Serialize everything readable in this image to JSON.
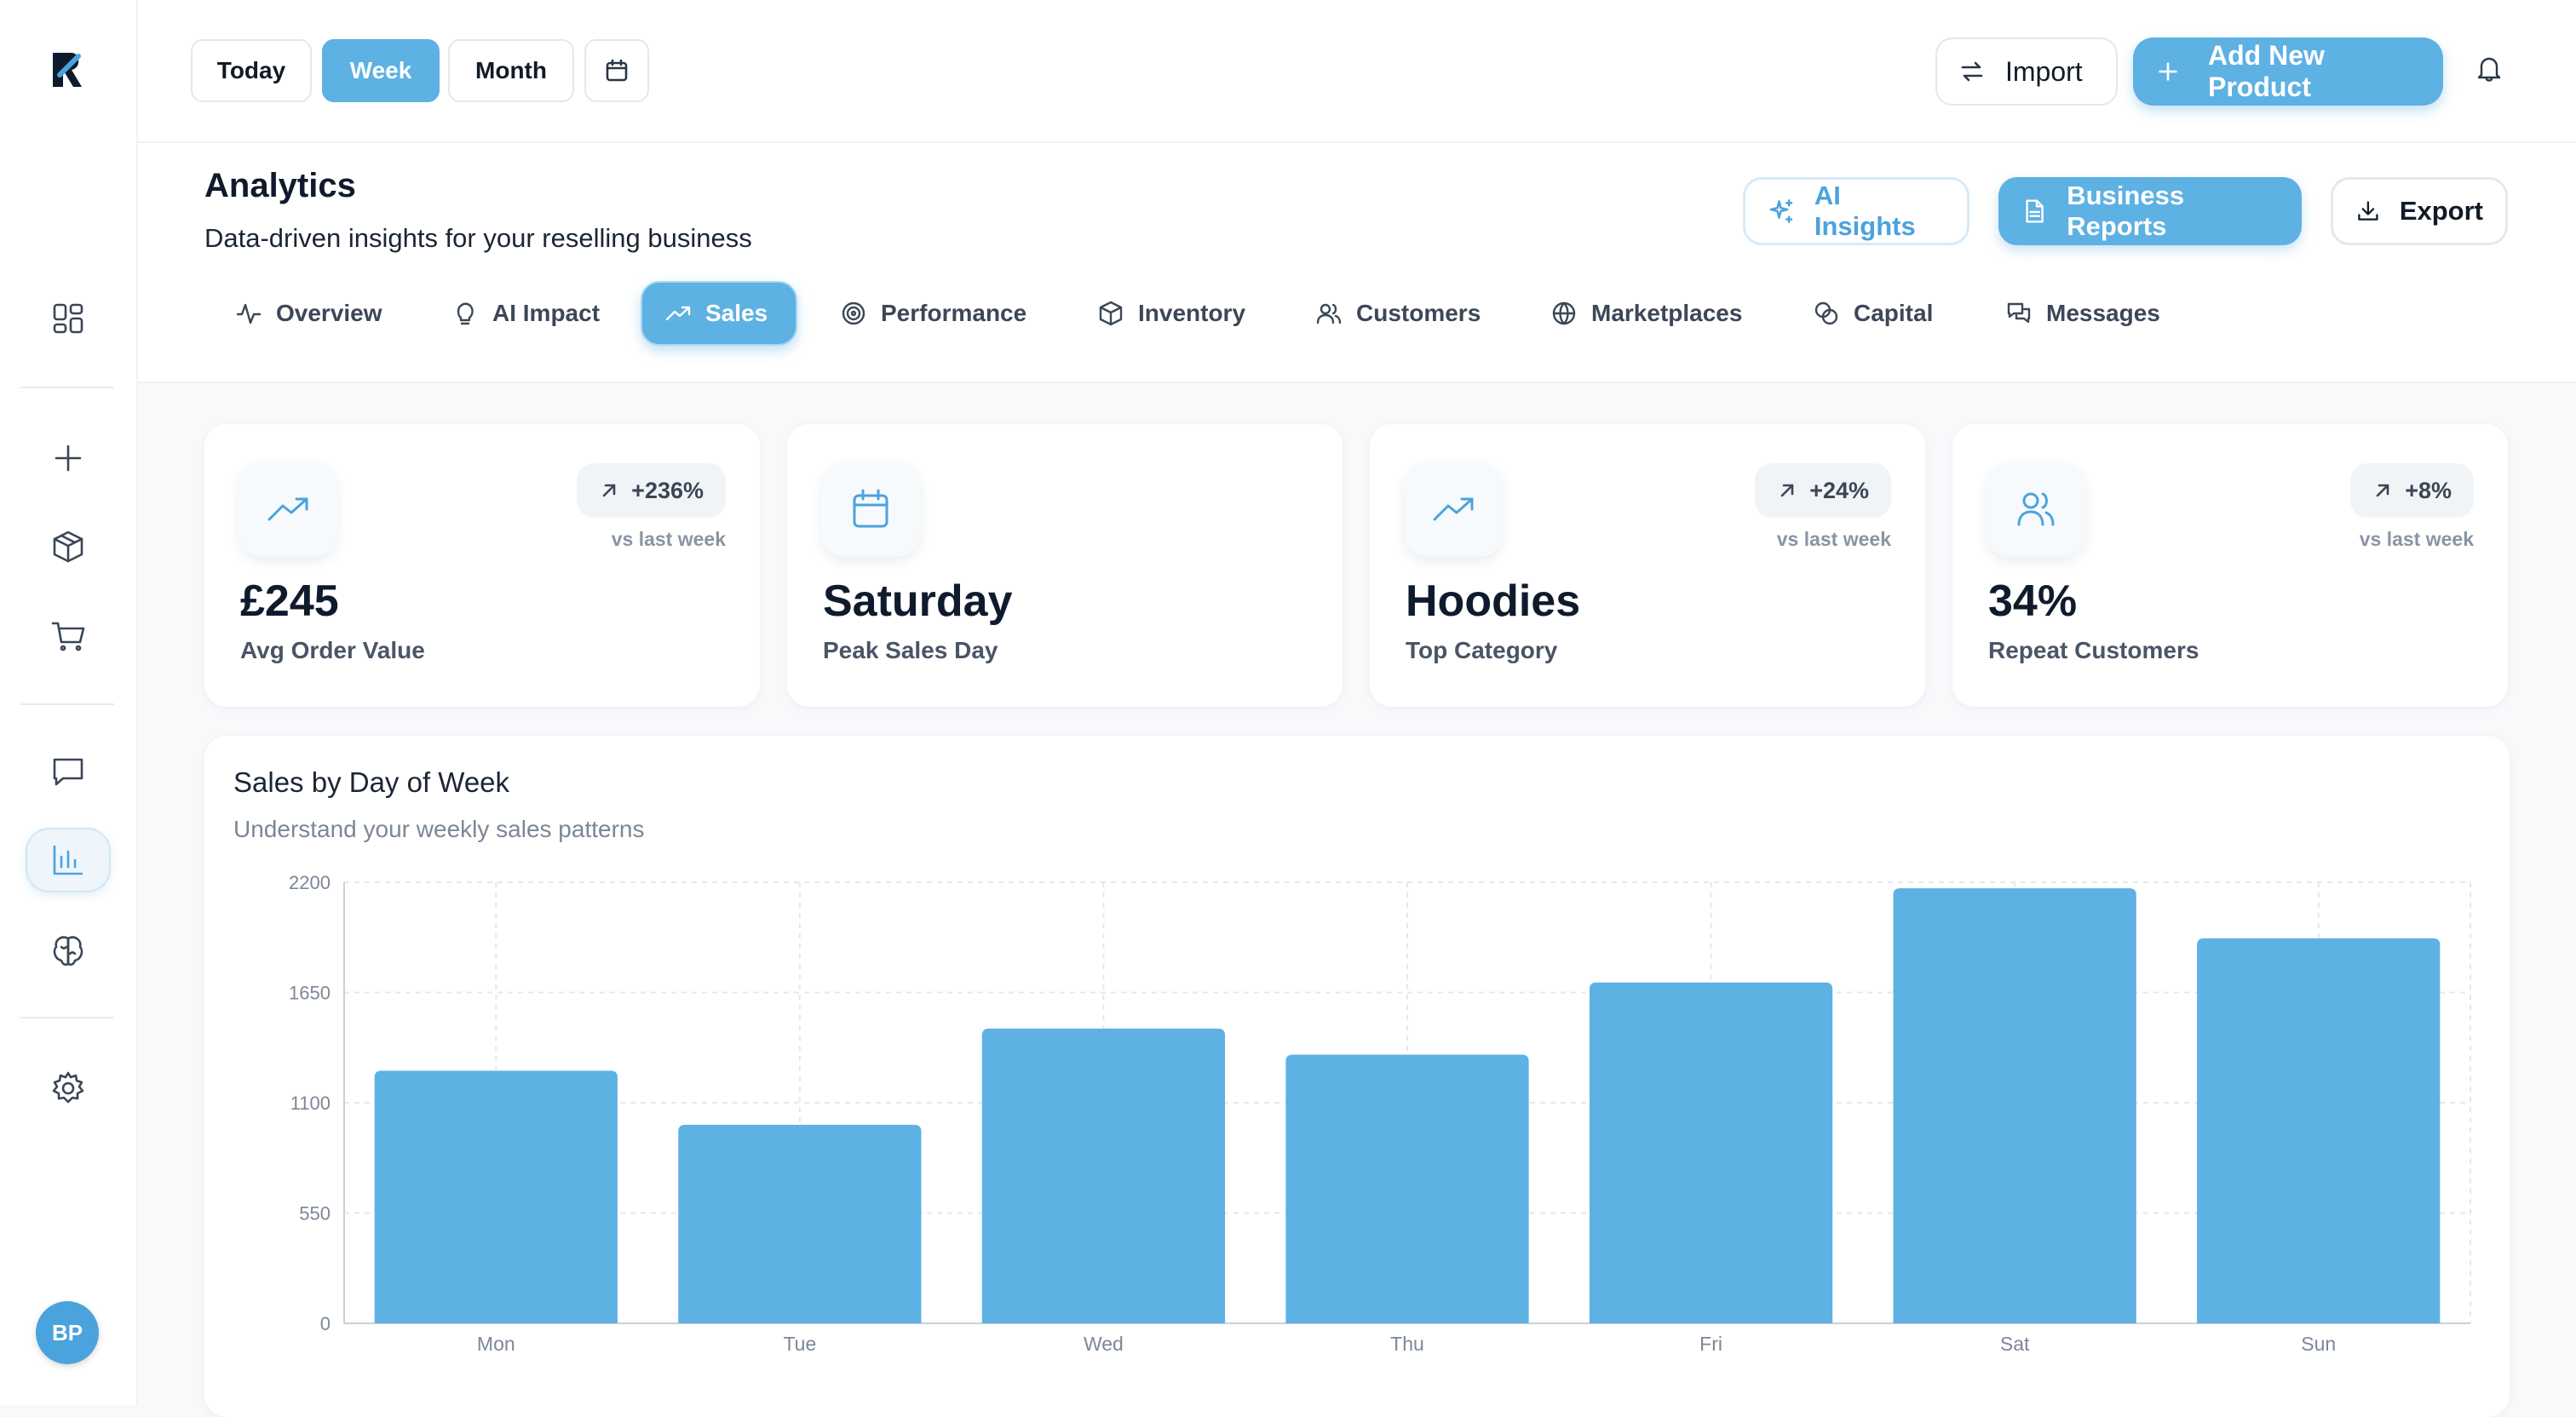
{
  "app": {
    "logo_name": "R logo"
  },
  "sidebar": {
    "items": [
      {
        "name": "dashboard"
      },
      {
        "name": "add"
      },
      {
        "name": "products"
      },
      {
        "name": "cart"
      },
      {
        "name": "messages"
      },
      {
        "name": "analytics",
        "active": true
      },
      {
        "name": "ai-brain"
      },
      {
        "name": "settings"
      }
    ],
    "avatar_initials": "BP"
  },
  "topbar": {
    "ranges": [
      "Today",
      "Week",
      "Month"
    ],
    "active_range": "Week",
    "import_label": "Import",
    "add_product_label": "Add New Product"
  },
  "header": {
    "title": "Analytics",
    "subtitle": "Data-driven insights for your reselling business",
    "ai_insights_label": "AI Insights",
    "business_reports_label": "Business Reports",
    "export_label": "Export"
  },
  "tabs": [
    {
      "label": "Overview",
      "icon": "activity-icon"
    },
    {
      "label": "AI Impact",
      "icon": "lightbulb-icon"
    },
    {
      "label": "Sales",
      "icon": "trending-up-icon",
      "active": true
    },
    {
      "label": "Performance",
      "icon": "target-icon"
    },
    {
      "label": "Inventory",
      "icon": "box-icon"
    },
    {
      "label": "Customers",
      "icon": "users-icon"
    },
    {
      "label": "Marketplaces",
      "icon": "globe-icon"
    },
    {
      "label": "Capital",
      "icon": "coins-icon"
    },
    {
      "label": "Messages",
      "icon": "chat-icon"
    }
  ],
  "stats": [
    {
      "value": "£245",
      "label": "Avg Order Value",
      "change": "+236%",
      "vs": "vs last week",
      "icon": "trending-up-icon"
    },
    {
      "value": "Saturday",
      "label": "Peak Sales Day",
      "change": "",
      "vs": "",
      "icon": "calendar-icon"
    },
    {
      "value": "Hoodies",
      "label": "Top Category",
      "change": "+24%",
      "vs": "vs last week",
      "icon": "trending-up-icon"
    },
    {
      "value": "34%",
      "label": "Repeat Customers",
      "change": "+8%",
      "vs": "vs last week",
      "icon": "users-icon"
    }
  ],
  "colors": {
    "accent": "#5db1e3",
    "bar": "#5db1e3"
  },
  "chart": {
    "title": "Sales by Day of Week",
    "subtitle": "Understand your weekly sales patterns"
  },
  "chart_data": {
    "type": "bar",
    "categories": [
      "Mon",
      "Tue",
      "Wed",
      "Thu",
      "Fri",
      "Sat",
      "Sun"
    ],
    "values": [
      1260,
      990,
      1470,
      1340,
      1700,
      2170,
      1920
    ],
    "ylim": [
      0,
      2200
    ],
    "yticks": [
      0,
      550,
      1100,
      1650,
      2200
    ],
    "grid": true
  }
}
